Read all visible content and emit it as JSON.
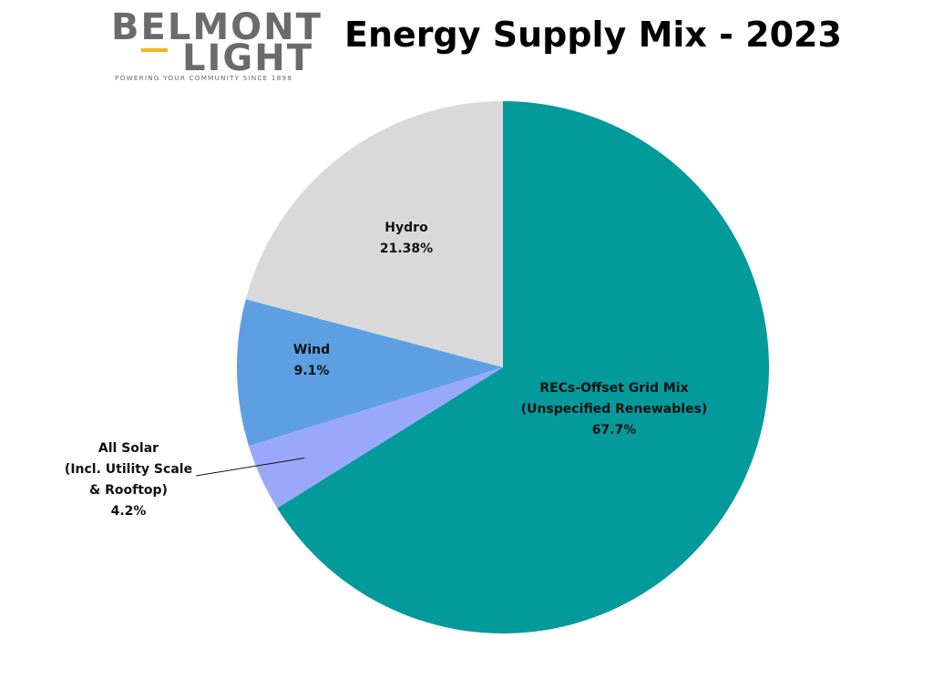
{
  "logo": {
    "line1": "BELMONT",
    "line2": "LIGHT",
    "tagline": "POWERING YOUR COMMUNITY SINCE 1898",
    "color": "#6b6b6b",
    "accent": "#f2b51a"
  },
  "title": "Energy Supply Mix - 2023",
  "chart_data": {
    "type": "pie",
    "title": "Energy Supply Mix - 2023",
    "start": "12 o'clock, clockwise",
    "slices": [
      {
        "label_lines": [
          "RECs-Offset Grid Mix",
          "(Unspecified Renewables)"
        ],
        "value": 67.7,
        "value_label": "67.7%",
        "color": "#039a9c"
      },
      {
        "label_lines": [
          "All Solar",
          "(Incl. Utility Scale",
          "& Rooftop)"
        ],
        "value": 4.2,
        "value_label": "4.2%",
        "color": "#9aa8fb"
      },
      {
        "label_lines": [
          "Wind"
        ],
        "value": 9.1,
        "value_label": "9.1%",
        "color": "#5ca0e3"
      },
      {
        "label_lines": [
          "Hydro"
        ],
        "value": 21.38,
        "value_label": "21.38%",
        "color": "#d9d9d9"
      }
    ]
  }
}
